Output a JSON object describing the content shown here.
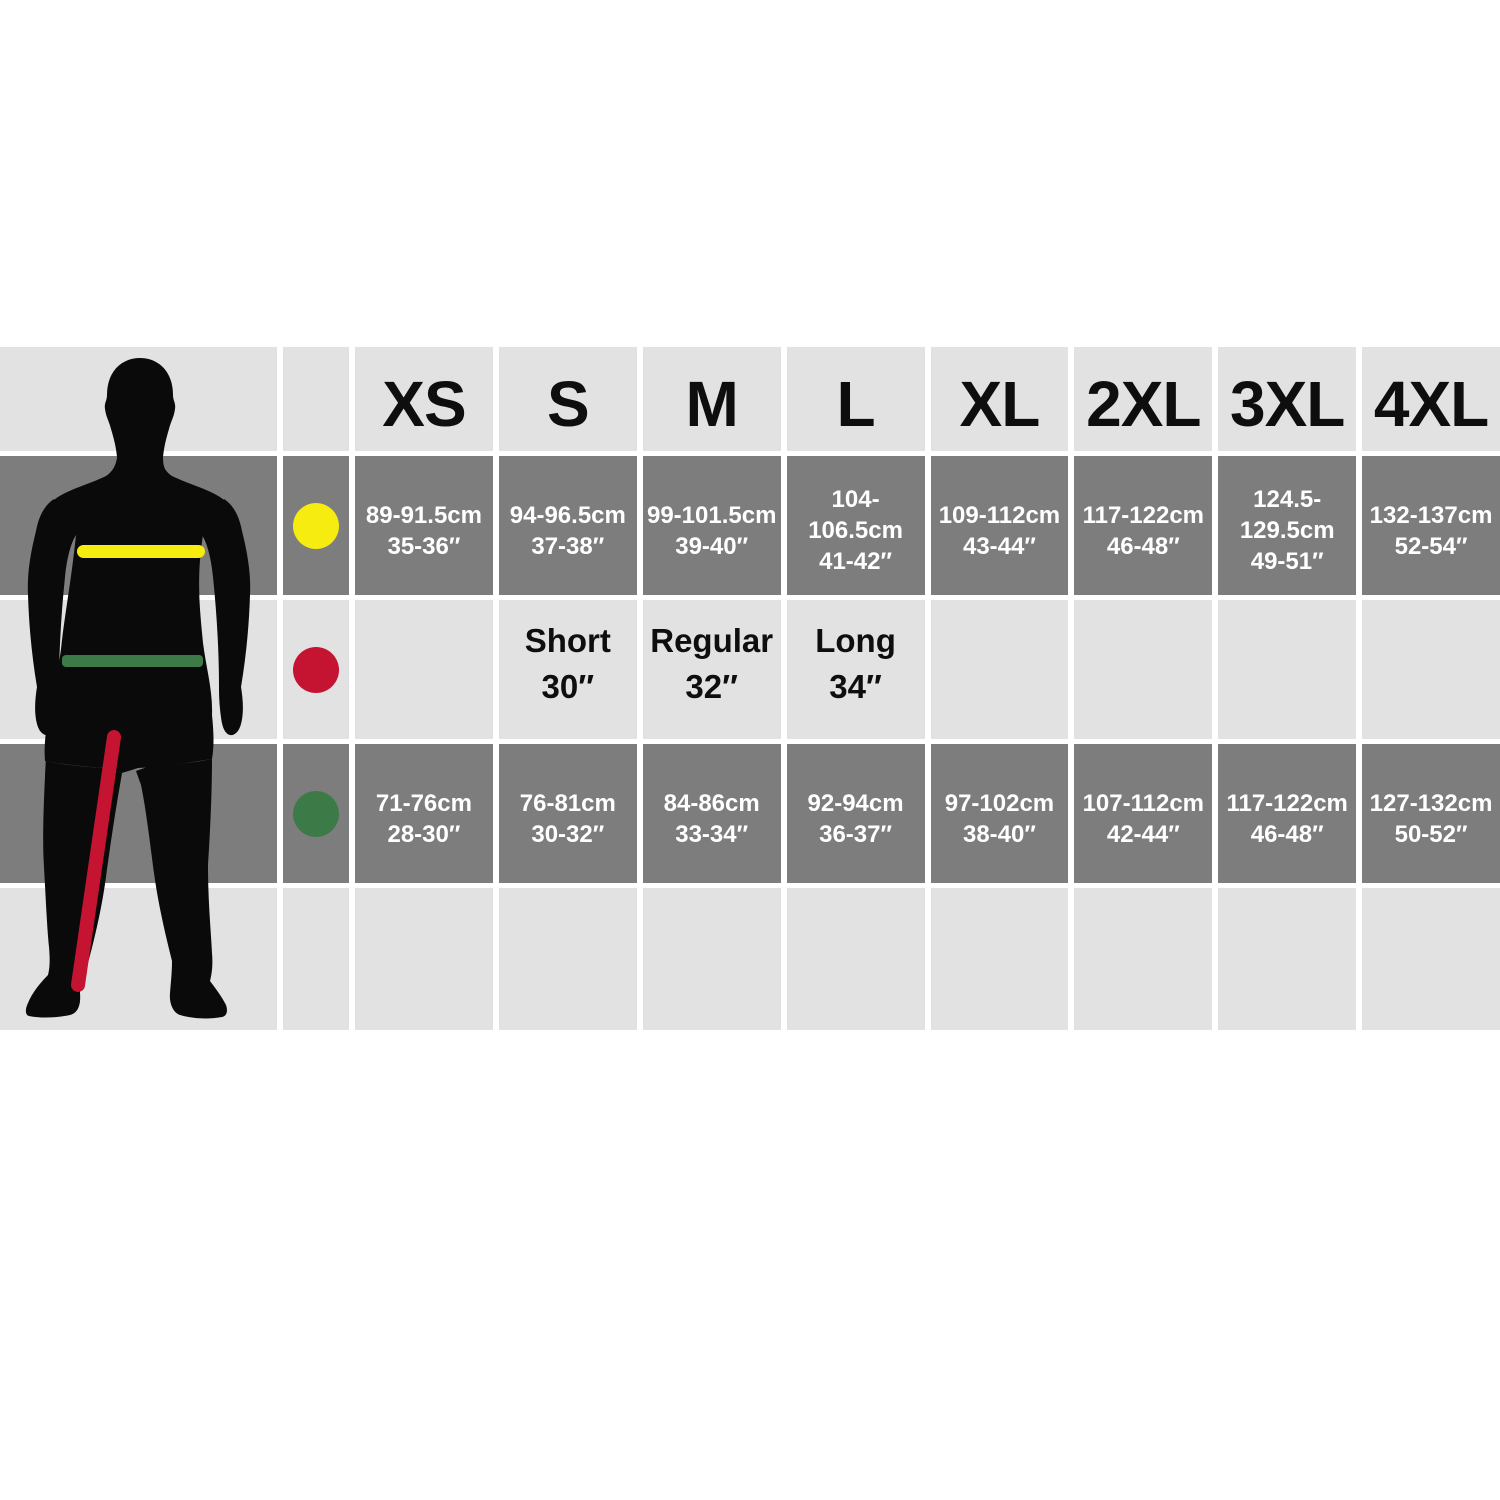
{
  "colors": {
    "page_background": "#ffffff",
    "cell_light": "#e2e2e2",
    "cell_dark": "#7d7d7d",
    "text_on_dark": "#ffffff",
    "text_on_light": "#0e0e0e",
    "silhouette_black": "#0a0a0a",
    "chest_indicator_yellow": "#f7ec0f",
    "inside_leg_indicator_red": "#c41431",
    "waist_indicator_green": "#3c7b47"
  },
  "figure": {
    "description": "black front-view male body silhouette",
    "indicators": [
      {
        "id": "chest-line",
        "color": "#f7ec0f",
        "placement": "horizontal bar across chest"
      },
      {
        "id": "waist-line",
        "color": "#3c7b47",
        "placement": "horizontal bar across waist"
      },
      {
        "id": "inside-leg-line",
        "color": "#c41431",
        "placement": "diagonal line from crotch to ankle"
      }
    ]
  },
  "chart_data": {
    "type": "table",
    "columns": [
      "XS",
      "S",
      "M",
      "L",
      "XL",
      "2XL",
      "3XL",
      "4XL"
    ],
    "rows": [
      {
        "id": "chest",
        "indicator_dot": "yellow-dot",
        "indicator_color": "#f7ec0f",
        "shade": "dark",
        "cells": [
          [
            "89-91.5cm",
            "35-36″"
          ],
          [
            "94-96.5cm",
            "37-38″"
          ],
          [
            "99-101.5cm",
            "39-40″"
          ],
          [
            "104-106.5cm",
            "41-42″"
          ],
          [
            "109-112cm",
            "43-44″"
          ],
          [
            "117-122cm",
            "46-48″"
          ],
          [
            "124.5-129.5cm",
            "49-51″"
          ],
          [
            "132-137cm",
            "52-54″"
          ]
        ]
      },
      {
        "id": "leg-length",
        "indicator_dot": "red-dot",
        "indicator_color": "#c41431",
        "shade": "light",
        "cells": [
          null,
          [
            "Short",
            "30″"
          ],
          [
            "Regular",
            "32″"
          ],
          [
            "Long",
            "34″"
          ],
          null,
          null,
          null,
          null
        ]
      },
      {
        "id": "waist",
        "indicator_dot": "green-dot",
        "indicator_color": "#3c7b47",
        "shade": "dark",
        "cells": [
          [
            "71-76cm",
            "28-30″"
          ],
          [
            "76-81cm",
            "30-32″"
          ],
          [
            "84-86cm",
            "33-34″"
          ],
          [
            "92-94cm",
            "36-37″"
          ],
          [
            "97-102cm",
            "38-40″"
          ],
          [
            "107-112cm",
            "42-44″"
          ],
          [
            "117-122cm",
            "46-48″"
          ],
          [
            "127-132cm",
            "50-52″"
          ]
        ]
      },
      {
        "id": "bottom-spacer",
        "indicator_dot": null,
        "indicator_color": null,
        "shade": "light",
        "cells": [
          null,
          null,
          null,
          null,
          null,
          null,
          null,
          null
        ]
      }
    ]
  }
}
